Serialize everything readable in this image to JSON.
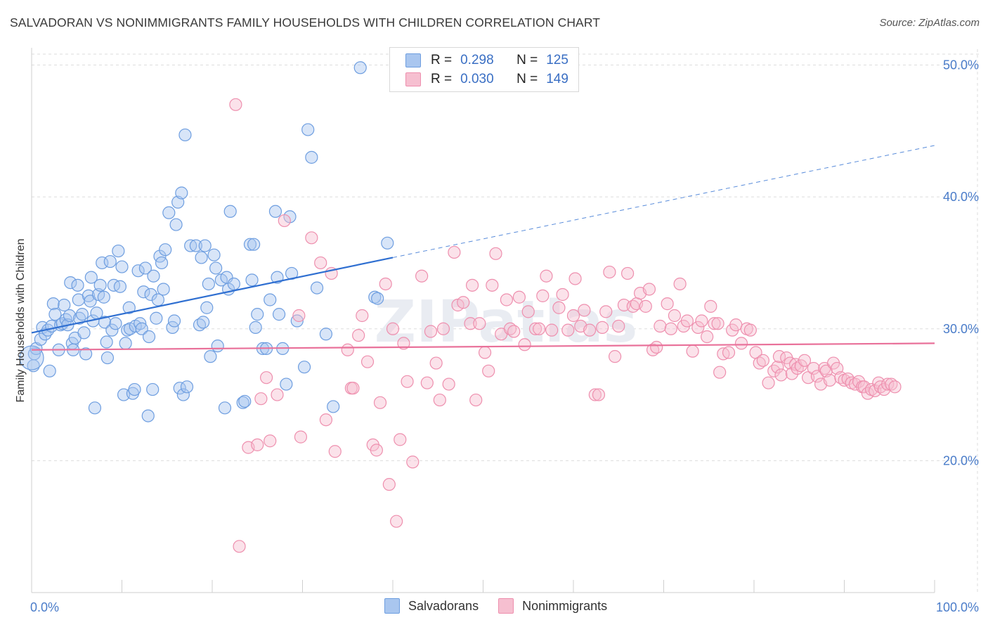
{
  "header": {
    "title": "SALVADORAN VS NONIMMIGRANTS FAMILY HOUSEHOLDS WITH CHILDREN CORRELATION CHART",
    "source": "Source: ZipAtlas.com"
  },
  "legend_top": {
    "rows": [
      {
        "r_label": "R =",
        "r_value": "0.298",
        "n_label": "N =",
        "n_value": "125"
      },
      {
        "r_label": "R =",
        "r_value": "0.030",
        "n_label": "N =",
        "n_value": "149"
      }
    ]
  },
  "legend_bottom": {
    "items": [
      "Salvadorans",
      "Nonimmigrants"
    ]
  },
  "colors": {
    "blue_fill": "#a9c6ef",
    "blue_stroke": "#6e9ee0",
    "blue_line": "#2f6fd1",
    "pink_fill": "#f6bfd0",
    "pink_stroke": "#ee8fae",
    "pink_line": "#e9719a",
    "grid": "#dddddd",
    "tick_label": "#4a7cc9"
  },
  "chart_data": {
    "type": "scatter",
    "title": "SALVADORAN VS NONIMMIGRANTS FAMILY HOUSEHOLDS WITH CHILDREN CORRELATION CHART",
    "xlabel": "",
    "ylabel": "Family Households with Children",
    "xlim": [
      0,
      100
    ],
    "ylim": [
      10,
      52
    ],
    "x_tick_labels": [
      "0.0%",
      "100.0%"
    ],
    "y_ticks": [
      20,
      30,
      40,
      50
    ],
    "y_tick_labels": [
      "20.0%",
      "30.0%",
      "40.0%",
      "50.0%"
    ],
    "grid": true,
    "legend_position": "top-center",
    "watermark": "ZIPatlas",
    "series": [
      {
        "name": "Salvadorans",
        "R": 0.298,
        "N": 125,
        "trend": {
          "x0": 0,
          "y0": 29.7,
          "x1": 40,
          "y1": 35.4,
          "dashed_to_x": 100,
          "dashed_to_y": 43.9
        },
        "points": [
          [
            0.2,
            27.2
          ],
          [
            0.3,
            28.1
          ],
          [
            0.5,
            28.5
          ],
          [
            1,
            29.2
          ],
          [
            1.2,
            30.1
          ],
          [
            1.5,
            29.6
          ],
          [
            1.8,
            29.9
          ],
          [
            2,
            26.8
          ],
          [
            2.2,
            30.2
          ],
          [
            2.4,
            31.9
          ],
          [
            2.6,
            31.1
          ],
          [
            3,
            28.4
          ],
          [
            3.2,
            30.3
          ],
          [
            3.4,
            30.4
          ],
          [
            3.6,
            31.8
          ],
          [
            3.8,
            30.7
          ],
          [
            4,
            30.3
          ],
          [
            4.2,
            31
          ],
          [
            4.3,
            33.5
          ],
          [
            4.5,
            28.9
          ],
          [
            4.6,
            28.4
          ],
          [
            4.8,
            29.3
          ],
          [
            5.1,
            33.3
          ],
          [
            5.2,
            32.2
          ],
          [
            5.3,
            30.8
          ],
          [
            5.6,
            31.1
          ],
          [
            5.8,
            29.7
          ],
          [
            6,
            28.1
          ],
          [
            6.3,
            32.5
          ],
          [
            6.5,
            32.1
          ],
          [
            6.6,
            33.9
          ],
          [
            6.8,
            30.6
          ],
          [
            7,
            24
          ],
          [
            7.2,
            31.2
          ],
          [
            7.4,
            32.6
          ],
          [
            7.6,
            33.3
          ],
          [
            7.8,
            35
          ],
          [
            8,
            32.4
          ],
          [
            8.1,
            30.5
          ],
          [
            8.3,
            29
          ],
          [
            8.4,
            27.8
          ],
          [
            8.7,
            35.1
          ],
          [
            8.9,
            29.9
          ],
          [
            9.1,
            33.3
          ],
          [
            9.3,
            30.4
          ],
          [
            9.6,
            35.9
          ],
          [
            9.8,
            33.2
          ],
          [
            10,
            34.7
          ],
          [
            10.2,
            25
          ],
          [
            10.4,
            28.9
          ],
          [
            10.6,
            29.9
          ],
          [
            10.8,
            31.6
          ],
          [
            10.9,
            30
          ],
          [
            11.2,
            25.1
          ],
          [
            11.4,
            25.4
          ],
          [
            11.5,
            30.2
          ],
          [
            11.8,
            34.4
          ],
          [
            12,
            30.4
          ],
          [
            12.2,
            30
          ],
          [
            12.4,
            32.8
          ],
          [
            12.6,
            34.6
          ],
          [
            12.9,
            23.4
          ],
          [
            13,
            29.4
          ],
          [
            13.2,
            32.6
          ],
          [
            13.4,
            25.4
          ],
          [
            13.5,
            34
          ],
          [
            13.8,
            30.8
          ],
          [
            14,
            32.2
          ],
          [
            14.2,
            35.5
          ],
          [
            14.4,
            35
          ],
          [
            14.6,
            33
          ],
          [
            14.8,
            36
          ],
          [
            15.2,
            38.8
          ],
          [
            15.6,
            30.1
          ],
          [
            15.8,
            30.6
          ],
          [
            16,
            37.9
          ],
          [
            16.2,
            39.6
          ],
          [
            16.4,
            25.5
          ],
          [
            16.6,
            40.3
          ],
          [
            16.8,
            25
          ],
          [
            17,
            44.7
          ],
          [
            17.2,
            25.6
          ],
          [
            17.6,
            36.3
          ],
          [
            18.2,
            36.3
          ],
          [
            18.6,
            30.3
          ],
          [
            18.8,
            35.4
          ],
          [
            19,
            30.5
          ],
          [
            19.2,
            36.3
          ],
          [
            19.4,
            31.6
          ],
          [
            19.6,
            33.4
          ],
          [
            19.8,
            27.9
          ],
          [
            20.2,
            35.6
          ],
          [
            20.4,
            34.6
          ],
          [
            20.6,
            28.7
          ],
          [
            21,
            33.7
          ],
          [
            21.4,
            24
          ],
          [
            21.6,
            33.9
          ],
          [
            21.8,
            33
          ],
          [
            22,
            38.9
          ],
          [
            22.4,
            33.4
          ],
          [
            23.4,
            24.4
          ],
          [
            23.6,
            24.5
          ],
          [
            24.2,
            36.4
          ],
          [
            24.4,
            33.7
          ],
          [
            24.6,
            36.4
          ],
          [
            24.8,
            30.1
          ],
          [
            25,
            31.1
          ],
          [
            25.6,
            28.5
          ],
          [
            26,
            28.5
          ],
          [
            26.4,
            32.2
          ],
          [
            27,
            38.9
          ],
          [
            27.2,
            33.9
          ],
          [
            27.4,
            31.1
          ],
          [
            27.8,
            28.5
          ],
          [
            28.2,
            25.8
          ],
          [
            28.6,
            38.5
          ],
          [
            28.8,
            34.2
          ],
          [
            29.4,
            30.6
          ],
          [
            30.2,
            27.1
          ],
          [
            30.6,
            45.1
          ],
          [
            31,
            43
          ],
          [
            31.6,
            33.1
          ],
          [
            32.6,
            29.6
          ],
          [
            33.4,
            24.1
          ],
          [
            36.4,
            49.8
          ],
          [
            38,
            32.4
          ],
          [
            38.3,
            32.3
          ],
          [
            39.4,
            36.5
          ]
        ]
      },
      {
        "name": "Nonimmigrants",
        "R": 0.03,
        "N": 149,
        "trend": {
          "x0": 0,
          "y0": 28.4,
          "x1": 100,
          "y1": 28.9
        },
        "points": [
          [
            22.6,
            47
          ],
          [
            23,
            13.5
          ],
          [
            24,
            21
          ],
          [
            25,
            21.2
          ],
          [
            25.4,
            24.7
          ],
          [
            26,
            26.3
          ],
          [
            26.4,
            21.5
          ],
          [
            27.2,
            25
          ],
          [
            28,
            38.2
          ],
          [
            29.6,
            31
          ],
          [
            29.8,
            21.8
          ],
          [
            31,
            36.9
          ],
          [
            32,
            35
          ],
          [
            32.6,
            23.1
          ],
          [
            33.2,
            34.2
          ],
          [
            33.6,
            20.7
          ],
          [
            35,
            28.4
          ],
          [
            35.4,
            25.5
          ],
          [
            35.6,
            25.5
          ],
          [
            36.2,
            29.5
          ],
          [
            36.6,
            31
          ],
          [
            37.2,
            27.5
          ],
          [
            37.8,
            21.2
          ],
          [
            38.2,
            20.8
          ],
          [
            38.6,
            24.4
          ],
          [
            39.2,
            33.4
          ],
          [
            39.6,
            18.2
          ],
          [
            40,
            30
          ],
          [
            40.4,
            15.4
          ],
          [
            40.8,
            21.6
          ],
          [
            41.2,
            28.9
          ],
          [
            41.6,
            26
          ],
          [
            42.2,
            19.9
          ],
          [
            43.2,
            34
          ],
          [
            43.8,
            25.9
          ],
          [
            44.2,
            29.8
          ],
          [
            44.8,
            27.4
          ],
          [
            45.2,
            24.6
          ],
          [
            45.6,
            30
          ],
          [
            46.2,
            25.8
          ],
          [
            46.8,
            35.8
          ],
          [
            47.2,
            31.8
          ],
          [
            47.8,
            32
          ],
          [
            48.6,
            30.4
          ],
          [
            48.8,
            33.3
          ],
          [
            49.2,
            24.6
          ],
          [
            49.6,
            30.4
          ],
          [
            50.2,
            28.2
          ],
          [
            50.6,
            26.8
          ],
          [
            51,
            33.3
          ],
          [
            51.4,
            35.7
          ],
          [
            52,
            29.6
          ],
          [
            52.6,
            32.2
          ],
          [
            53,
            30
          ],
          [
            53.4,
            29.8
          ],
          [
            54,
            32.4
          ],
          [
            54.6,
            28.8
          ],
          [
            55,
            31.3
          ],
          [
            55.8,
            30
          ],
          [
            56.2,
            30
          ],
          [
            56.6,
            32.5
          ],
          [
            57,
            34
          ],
          [
            57.6,
            29.9
          ],
          [
            58.4,
            31.6
          ],
          [
            58.8,
            32.6
          ],
          [
            59.4,
            29.9
          ],
          [
            60,
            31
          ],
          [
            60.2,
            33.8
          ],
          [
            60.8,
            30.2
          ],
          [
            61.2,
            31.4
          ],
          [
            61.8,
            29.9
          ],
          [
            62.4,
            25
          ],
          [
            62.8,
            25
          ],
          [
            63.2,
            30.1
          ],
          [
            63.6,
            31.3
          ],
          [
            64,
            34.3
          ],
          [
            64.6,
            27.9
          ],
          [
            65,
            30.2
          ],
          [
            65.6,
            31.8
          ],
          [
            66,
            34.2
          ],
          [
            66.6,
            31.7
          ],
          [
            67,
            31.9
          ],
          [
            67.4,
            32.7
          ],
          [
            68,
            31.7
          ],
          [
            68.4,
            33
          ],
          [
            68.8,
            28.4
          ],
          [
            69.2,
            28.6
          ],
          [
            69.6,
            30.2
          ],
          [
            70.4,
            31.9
          ],
          [
            70.8,
            30
          ],
          [
            71.2,
            31
          ],
          [
            71.8,
            33.4
          ],
          [
            72.2,
            30.2
          ],
          [
            72.6,
            30.6
          ],
          [
            73.2,
            28.3
          ],
          [
            73.8,
            30.1
          ],
          [
            74.2,
            30.6
          ],
          [
            74.8,
            29.4
          ],
          [
            75.2,
            31.7
          ],
          [
            75.6,
            30.4
          ],
          [
            76,
            30.4
          ],
          [
            76.2,
            26.7
          ],
          [
            76.6,
            28.1
          ],
          [
            77.2,
            28.2
          ],
          [
            77.6,
            29.9
          ],
          [
            78,
            30.3
          ],
          [
            78.6,
            28.9
          ],
          [
            79.2,
            30
          ],
          [
            79.6,
            29.9
          ],
          [
            80.2,
            28.2
          ],
          [
            80.6,
            27.4
          ],
          [
            81,
            27.6
          ],
          [
            81.6,
            25.9
          ],
          [
            82.2,
            26.8
          ],
          [
            82.6,
            27.1
          ],
          [
            82.8,
            27.9
          ],
          [
            83,
            26.5
          ],
          [
            83.6,
            27.8
          ],
          [
            84,
            27.4
          ],
          [
            84.2,
            26.6
          ],
          [
            84.6,
            27.3
          ],
          [
            84.8,
            27
          ],
          [
            85.2,
            27.2
          ],
          [
            85.6,
            27.6
          ],
          [
            86,
            26.3
          ],
          [
            86.6,
            27
          ],
          [
            87,
            26.4
          ],
          [
            87.4,
            25.8
          ],
          [
            87.8,
            27
          ],
          [
            88,
            26.8
          ],
          [
            88.4,
            26.1
          ],
          [
            88.8,
            27.4
          ],
          [
            89.2,
            27
          ],
          [
            89.6,
            26.3
          ],
          [
            90,
            26.1
          ],
          [
            90.4,
            26.2
          ],
          [
            90.8,
            25.9
          ],
          [
            91.2,
            25.8
          ],
          [
            91.6,
            26
          ],
          [
            92,
            25.6
          ],
          [
            92.2,
            25.6
          ],
          [
            92.6,
            25.1
          ],
          [
            93,
            25.4
          ],
          [
            93.4,
            25.3
          ],
          [
            93.8,
            25.9
          ],
          [
            94,
            25.6
          ],
          [
            94.4,
            25.4
          ],
          [
            94.8,
            25.8
          ],
          [
            95.2,
            25.8
          ],
          [
            95.6,
            25.6
          ]
        ]
      }
    ]
  }
}
